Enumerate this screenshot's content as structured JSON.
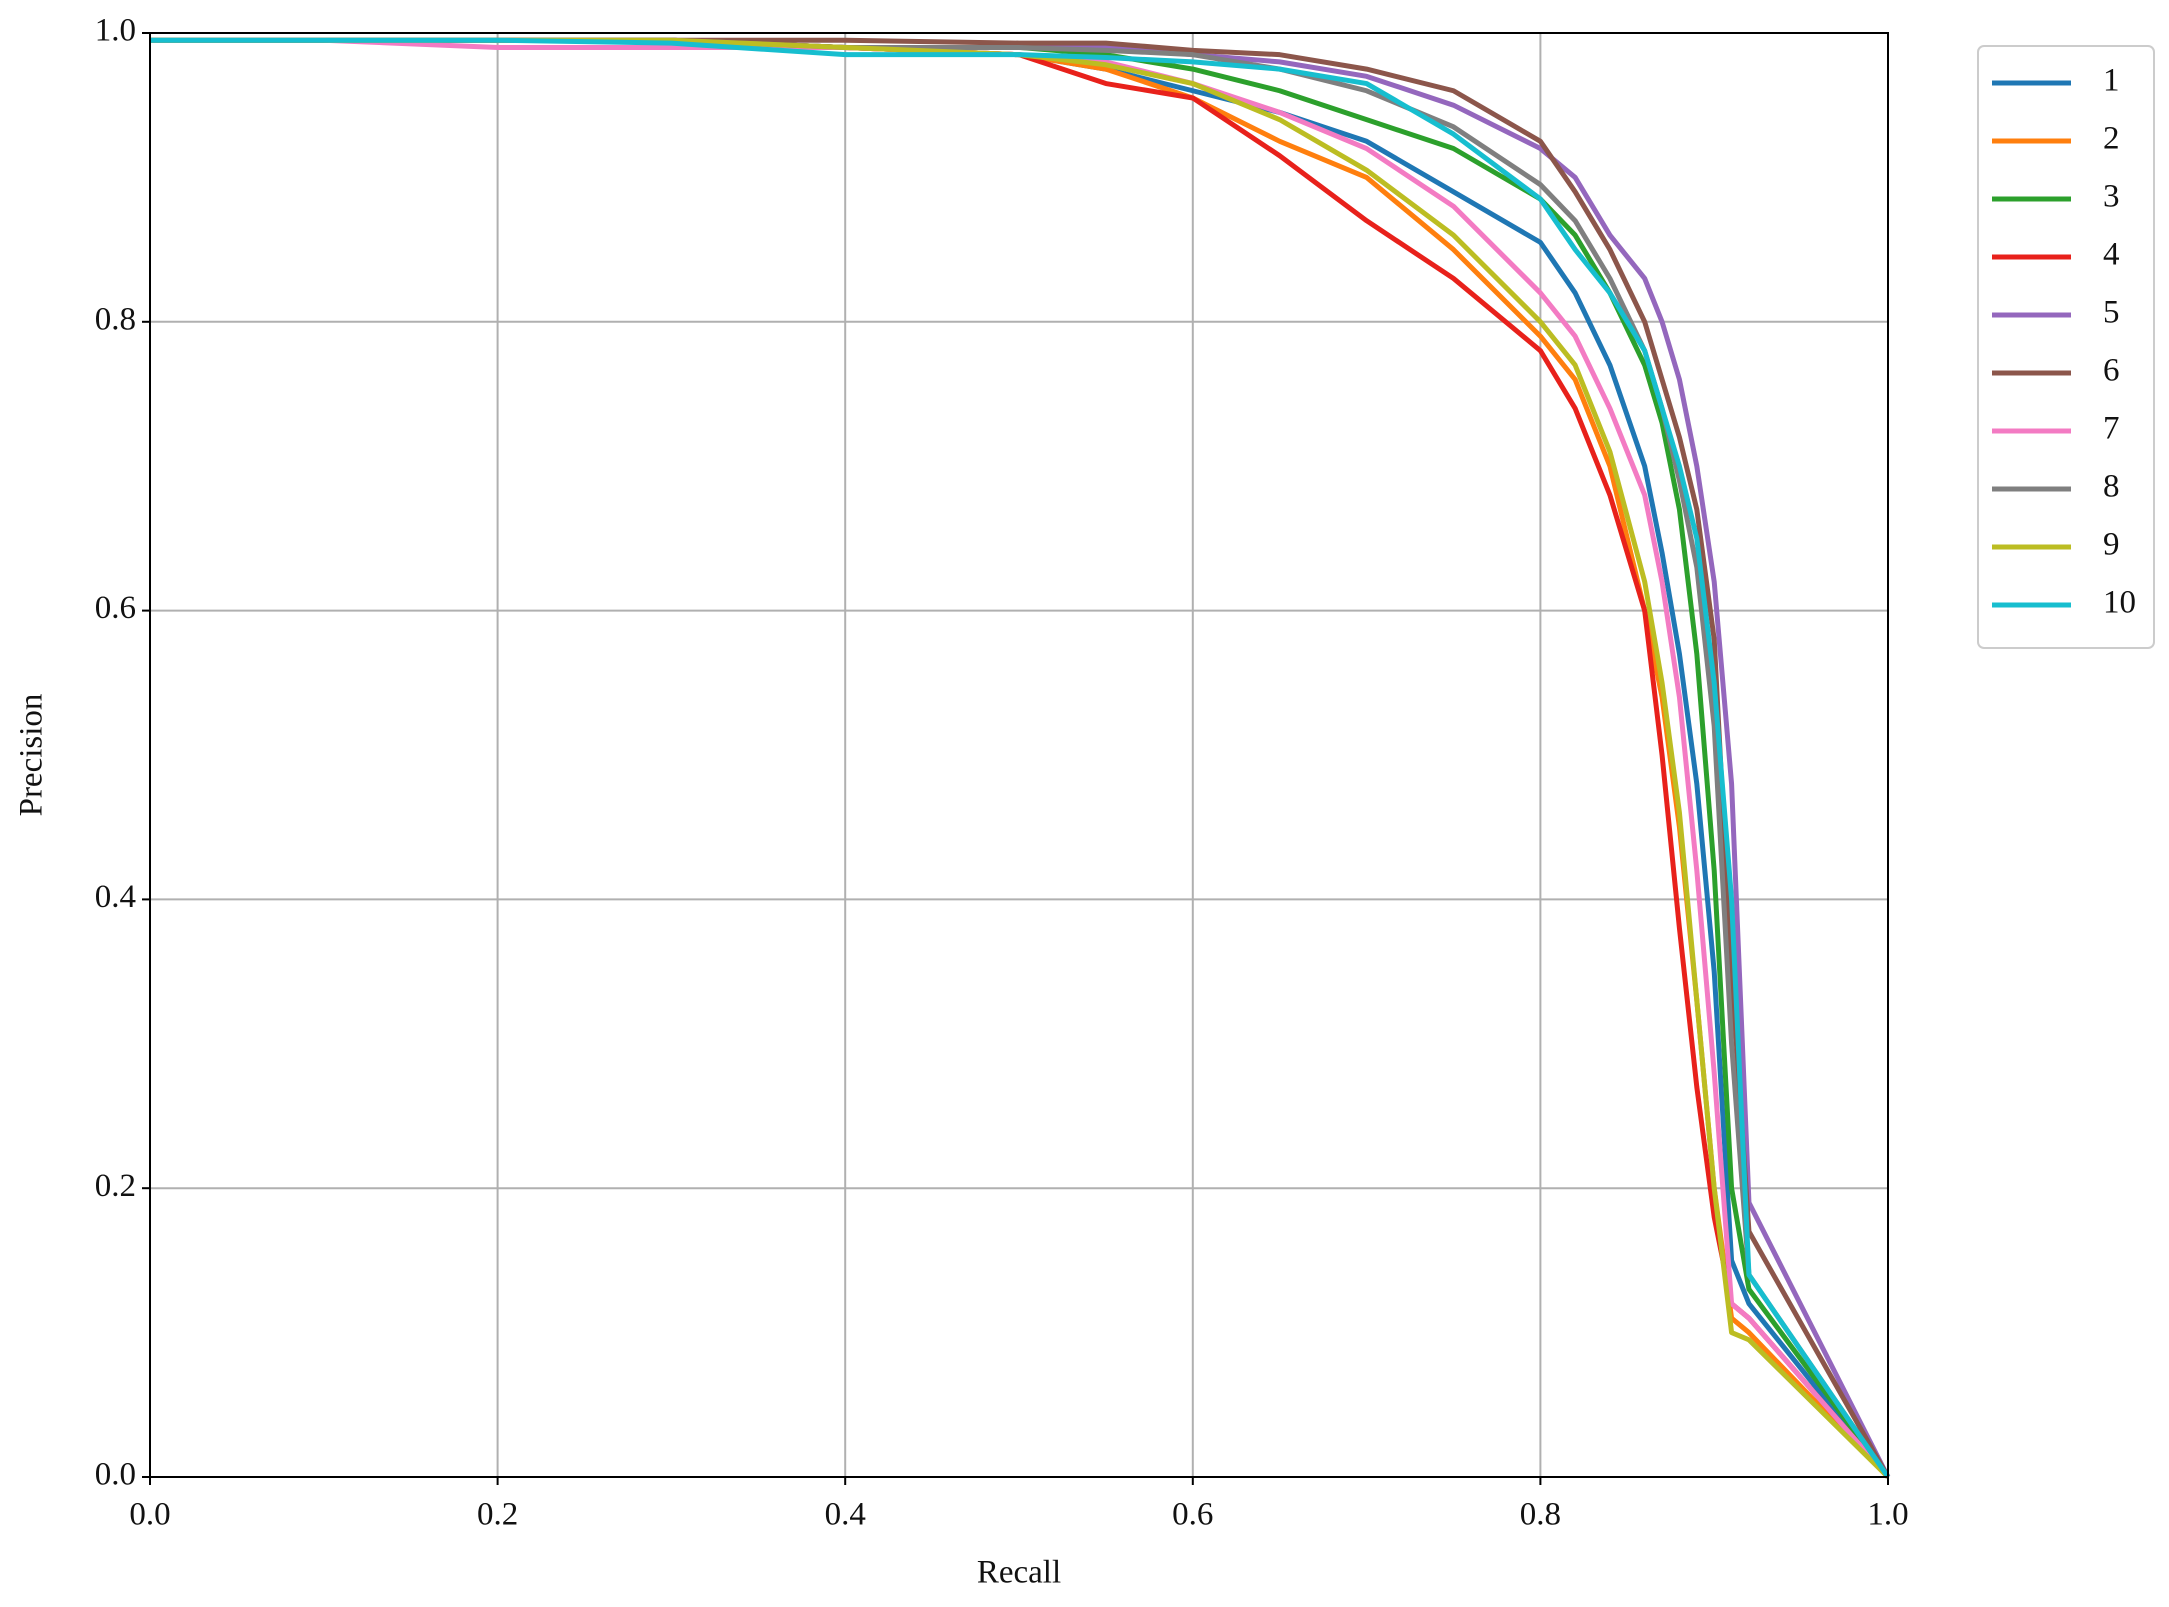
{
  "chart_data": {
    "type": "line",
    "xlabel": "Recall",
    "ylabel": "Precision",
    "x": [
      0,
      0.1,
      0.2,
      0.3,
      0.4,
      0.5,
      0.55,
      0.6,
      0.65,
      0.7,
      0.75,
      0.8,
      0.82,
      0.84,
      0.86,
      0.87,
      0.88,
      0.89,
      0.9,
      0.91,
      0.92,
      1.0
    ],
    "series": [
      {
        "name": "1",
        "color": "#1f77b4",
        "values": [
          0.995,
          0.995,
          0.995,
          0.995,
          0.99,
          0.985,
          0.975,
          0.96,
          0.945,
          0.925,
          0.89,
          0.855,
          0.82,
          0.77,
          0.7,
          0.64,
          0.57,
          0.48,
          0.35,
          0.15,
          0.12,
          0.0
        ]
      },
      {
        "name": "2",
        "color": "#ff7f0e",
        "values": [
          0.995,
          0.995,
          0.995,
          0.995,
          0.99,
          0.985,
          0.975,
          0.955,
          0.925,
          0.9,
          0.85,
          0.79,
          0.76,
          0.7,
          0.6,
          0.54,
          0.45,
          0.33,
          0.2,
          0.11,
          0.1,
          0.0
        ]
      },
      {
        "name": "3",
        "color": "#2ca02c",
        "values": [
          0.995,
          0.995,
          0.995,
          0.995,
          0.99,
          0.99,
          0.985,
          0.975,
          0.96,
          0.94,
          0.92,
          0.885,
          0.86,
          0.82,
          0.77,
          0.73,
          0.67,
          0.57,
          0.42,
          0.2,
          0.13,
          0.0
        ]
      },
      {
        "name": "4",
        "color": "#e8211b",
        "values": [
          0.995,
          0.995,
          0.995,
          0.995,
          0.99,
          0.985,
          0.965,
          0.955,
          0.915,
          0.87,
          0.83,
          0.78,
          0.74,
          0.68,
          0.6,
          0.5,
          0.38,
          0.27,
          0.18,
          0.12,
          0.11,
          0.0
        ]
      },
      {
        "name": "5",
        "color": "#9467bd",
        "values": [
          0.995,
          0.995,
          0.995,
          0.995,
          0.99,
          0.99,
          0.99,
          0.985,
          0.98,
          0.97,
          0.95,
          0.92,
          0.9,
          0.86,
          0.83,
          0.8,
          0.76,
          0.7,
          0.62,
          0.48,
          0.19,
          0.0
        ]
      },
      {
        "name": "6",
        "color": "#8c564b",
        "values": [
          0.995,
          0.995,
          0.995,
          0.995,
          0.995,
          0.993,
          0.993,
          0.988,
          0.985,
          0.975,
          0.96,
          0.925,
          0.89,
          0.85,
          0.8,
          0.76,
          0.72,
          0.67,
          0.58,
          0.35,
          0.17,
          0.0
        ]
      },
      {
        "name": "7",
        "color": "#f37bc3",
        "values": [
          0.995,
          0.995,
          0.99,
          0.99,
          0.99,
          0.985,
          0.98,
          0.965,
          0.945,
          0.92,
          0.88,
          0.82,
          0.79,
          0.74,
          0.68,
          0.62,
          0.54,
          0.42,
          0.28,
          0.12,
          0.11,
          0.0
        ]
      },
      {
        "name": "8",
        "color": "#7f7f7f",
        "values": [
          0.995,
          0.995,
          0.995,
          0.995,
          0.99,
          0.99,
          0.988,
          0.985,
          0.975,
          0.96,
          0.935,
          0.895,
          0.87,
          0.83,
          0.78,
          0.74,
          0.69,
          0.63,
          0.52,
          0.3,
          0.14,
          0.0
        ]
      },
      {
        "name": "9",
        "color": "#bcbd22",
        "values": [
          0.995,
          0.995,
          0.995,
          0.995,
          0.99,
          0.985,
          0.978,
          0.965,
          0.94,
          0.905,
          0.86,
          0.8,
          0.77,
          0.71,
          0.62,
          0.55,
          0.46,
          0.33,
          0.2,
          0.1,
          0.095,
          0.0
        ]
      },
      {
        "name": "10",
        "color": "#17becf",
        "values": [
          0.995,
          0.995,
          0.995,
          0.993,
          0.985,
          0.985,
          0.983,
          0.98,
          0.975,
          0.965,
          0.93,
          0.885,
          0.85,
          0.82,
          0.78,
          0.74,
          0.7,
          0.65,
          0.55,
          0.4,
          0.14,
          0.0
        ]
      }
    ],
    "xlim": [
      0,
      1
    ],
    "ylim": [
      0,
      1
    ],
    "xticks": [
      {
        "value": 0,
        "label": "0.0"
      },
      0.2,
      0.4,
      0.6,
      0.8,
      {
        "value": 1,
        "label": "1.0"
      }
    ],
    "yticks": [
      {
        "value": 0,
        "label": "0.0"
      },
      0.2,
      0.4,
      0.6,
      0.8,
      {
        "value": 1,
        "label": "1.0"
      }
    ],
    "grid": true,
    "legend": "outside-upper-right"
  }
}
